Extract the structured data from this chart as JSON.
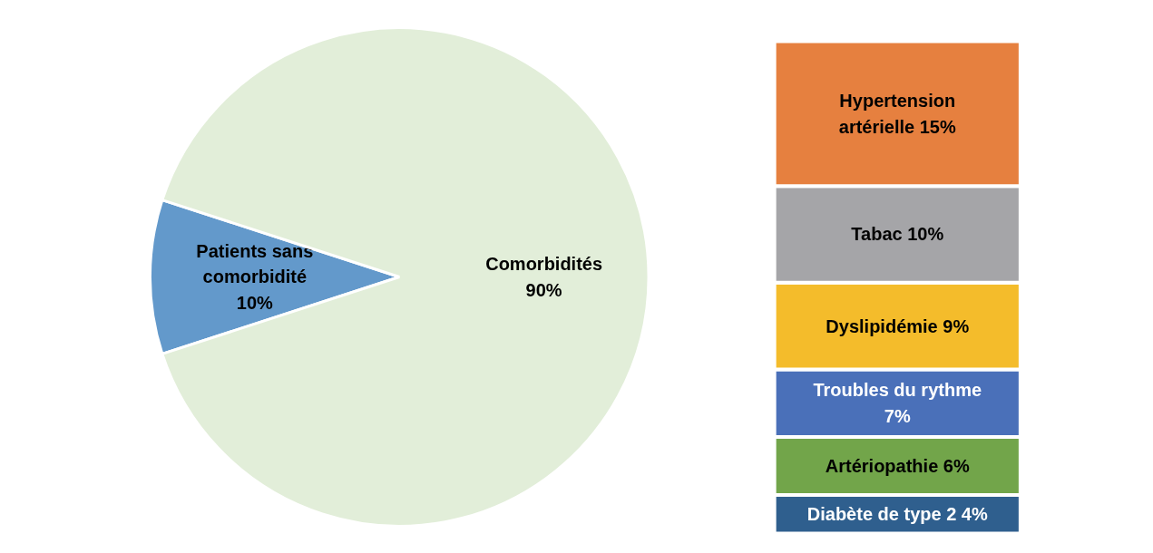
{
  "chart_data": [
    {
      "type": "pie",
      "categories": [
        "Patients sans comorbidité",
        "Comorbidités"
      ],
      "values": [
        10,
        90
      ],
      "colors": [
        "#6399cb",
        "#e2eed9"
      ],
      "value_labels": [
        "10%",
        "90%"
      ]
    },
    {
      "type": "bar",
      "stacked": true,
      "categories": [
        null
      ],
      "series": [
        {
          "name": "Diabète de type 2",
          "color": "#2f5f8e",
          "values": [
            4
          ],
          "value_labels": [
            "4%"
          ]
        },
        {
          "name": "Artériopathie",
          "color": "#72a54a",
          "values": [
            6
          ],
          "value_labels": [
            "6%"
          ]
        },
        {
          "name": "Troubles du rythme",
          "color": "#4a70b9",
          "values": [
            7
          ],
          "value_labels": [
            "7%"
          ]
        },
        {
          "name": "Dyslipidémie",
          "color": "#f4bc2b",
          "values": [
            9
          ],
          "value_labels": [
            "9%"
          ]
        },
        {
          "name": "Tabac",
          "color": "#a5a5a8",
          "values": [
            10
          ],
          "value_labels": [
            "10%"
          ]
        },
        {
          "name": "Hypertension artérielle",
          "color": "#e6803f",
          "values": [
            15
          ],
          "value_labels": [
            "15%"
          ]
        }
      ]
    }
  ]
}
